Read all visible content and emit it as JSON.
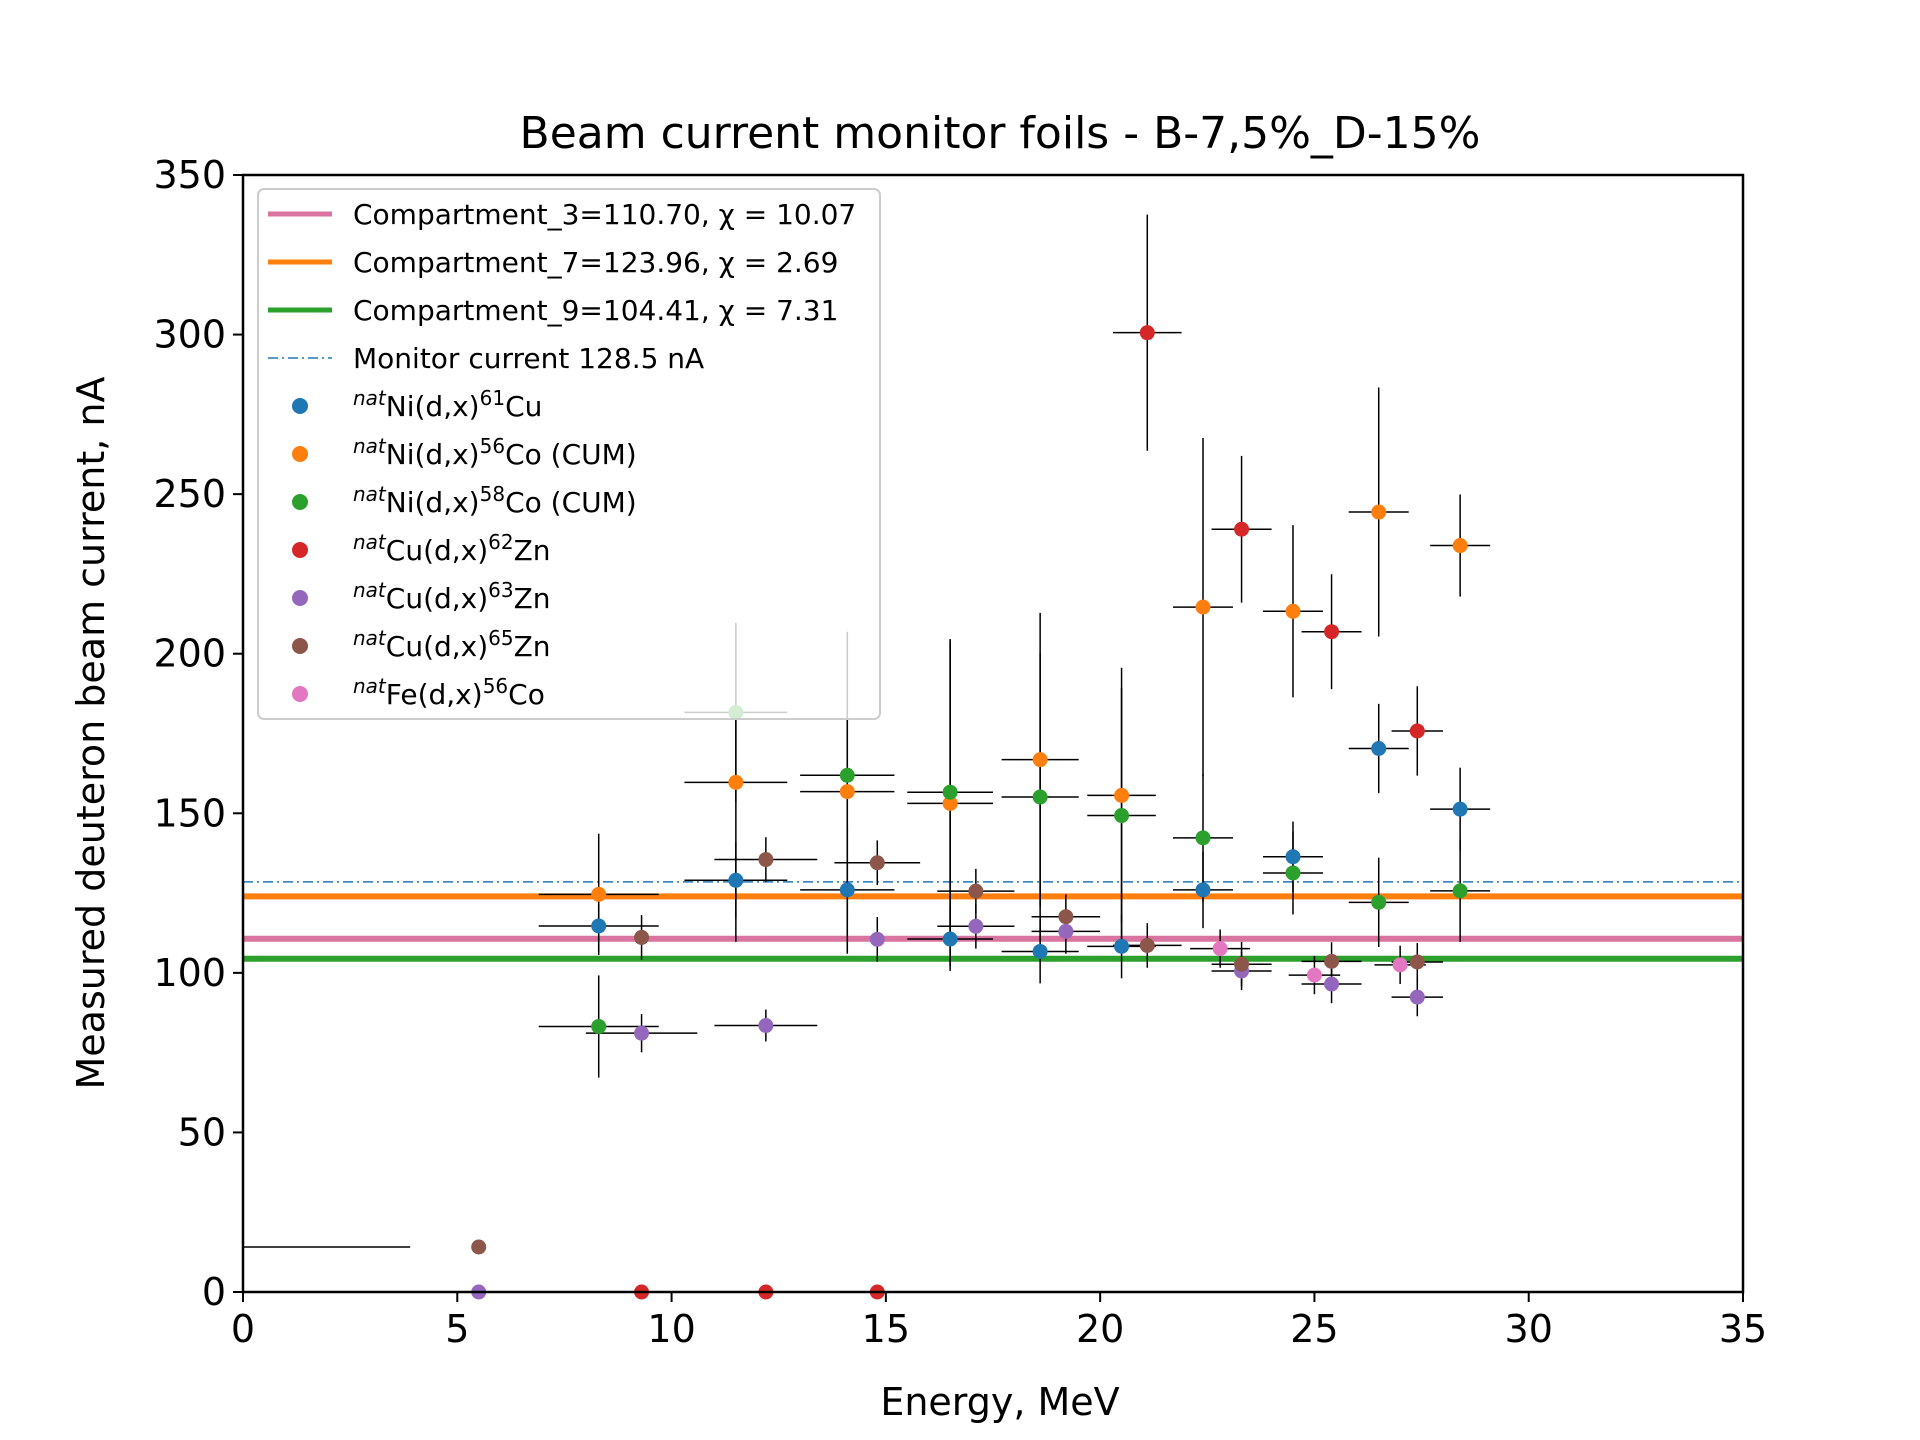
{
  "chart_data": {
    "type": "scatter",
    "title": "Beam current monitor foils - B-7,5%_D-15%",
    "xlabel": "Energy, MeV",
    "ylabel": "Measured deuteron beam current, nA",
    "xlim": [
      0,
      35
    ],
    "ylim": [
      0,
      350
    ],
    "xticks": [
      0,
      5,
      10,
      15,
      20,
      25,
      30,
      35
    ],
    "yticks": [
      0,
      50,
      100,
      150,
      200,
      250,
      300,
      350
    ],
    "grid": false,
    "legend_position": "top-left",
    "lines": [
      {
        "label": "Compartment_3=110.70, χ = 10.07",
        "value": 110.7,
        "color": "#d9739f",
        "style": "solid"
      },
      {
        "label": "Compartment_7=123.96, χ = 2.69",
        "value": 123.96,
        "color": "#ff7f0e",
        "style": "solid"
      },
      {
        "label": "Compartment_9=104.41, χ = 7.31",
        "value": 104.41,
        "color": "#2ca02c",
        "style": "solid"
      },
      {
        "label": "Monitor current 128.5 nA",
        "value": 128.5,
        "color": "#1f77b4",
        "style": "dashdot"
      }
    ],
    "series": [
      {
        "pre": "nat",
        "a": "Ni(d,x)",
        "sup": "61",
        "b": "Cu",
        "color": "#1f77b4",
        "points": [
          {
            "x": 8.3,
            "y": 114.7,
            "xerr": 1.4,
            "yerr": 8
          },
          {
            "x": 11.5,
            "y": 129,
            "xerr": 1.2,
            "yerr": 12
          },
          {
            "x": 14.1,
            "y": 126,
            "xerr": 1.1,
            "yerr": 20
          },
          {
            "x": 16.5,
            "y": 110.6,
            "xerr": 1.0,
            "yerr": 10
          },
          {
            "x": 18.6,
            "y": 106.7,
            "xerr": 0.9,
            "yerr": 10
          },
          {
            "x": 20.5,
            "y": 108.3,
            "xerr": 0.8,
            "yerr": 10
          },
          {
            "x": 22.4,
            "y": 126,
            "xerr": 0.7,
            "yerr": 12
          },
          {
            "x": 24.5,
            "y": 136.4,
            "xerr": 0.7,
            "yerr": 11
          },
          {
            "x": 26.5,
            "y": 170.3,
            "xerr": 0.7,
            "yerr": 14
          },
          {
            "x": 28.4,
            "y": 151.3,
            "xerr": 0.7,
            "yerr": 13
          }
        ]
      },
      {
        "pre": "nat",
        "a": "Ni(d,x)",
        "sup": "56",
        "b": "Co (CUM)",
        "color": "#ff7f0e",
        "points": [
          {
            "x": 8.3,
            "y": 124.6,
            "xerr": 1.4,
            "yerr": 19
          },
          {
            "x": 11.5,
            "y": 159.7,
            "xerr": 1.2,
            "yerr": 50
          },
          {
            "x": 14.1,
            "y": 156.8,
            "xerr": 1.1,
            "yerr": 50
          },
          {
            "x": 16.5,
            "y": 153.1,
            "xerr": 1.0,
            "yerr": 51
          },
          {
            "x": 18.6,
            "y": 166.8,
            "xerr": 0.9,
            "yerr": 46
          },
          {
            "x": 20.5,
            "y": 155.6,
            "xerr": 0.8,
            "yerr": 40
          },
          {
            "x": 22.4,
            "y": 214.6,
            "xerr": 0.7,
            "yerr": 53
          },
          {
            "x": 24.5,
            "y": 213.3,
            "xerr": 0.7,
            "yerr": 27
          },
          {
            "x": 26.5,
            "y": 244.4,
            "xerr": 0.7,
            "yerr": 39
          },
          {
            "x": 28.4,
            "y": 233.9,
            "xerr": 0.7,
            "yerr": 16
          }
        ]
      },
      {
        "pre": "nat",
        "a": "Ni(d,x)",
        "sup": "58",
        "b": "Co (CUM)",
        "color": "#2ca02c",
        "points": [
          {
            "x": 8.3,
            "y": 83.2,
            "xerr": 1.4,
            "yerr": 16
          },
          {
            "x": 11.5,
            "y": 181.6,
            "xerr": 1.2,
            "yerr": 28
          },
          {
            "x": 14.1,
            "y": 161.9,
            "xerr": 1.1,
            "yerr": 45
          },
          {
            "x": 16.5,
            "y": 156.6,
            "xerr": 1.0,
            "yerr": 48
          },
          {
            "x": 18.6,
            "y": 155.1,
            "xerr": 0.9,
            "yerr": 45
          },
          {
            "x": 20.5,
            "y": 149.3,
            "xerr": 0.8,
            "yerr": 40
          },
          {
            "x": 22.4,
            "y": 142.3,
            "xerr": 0.7,
            "yerr": 20
          },
          {
            "x": 24.5,
            "y": 131.3,
            "xerr": 0.7,
            "yerr": 13
          },
          {
            "x": 26.5,
            "y": 122.1,
            "xerr": 0.7,
            "yerr": 14
          },
          {
            "x": 28.4,
            "y": 125.7,
            "xerr": 0.7,
            "yerr": 16
          }
        ]
      },
      {
        "pre": "nat",
        "a": "Cu(d,x)",
        "sup": "62",
        "b": "Zn",
        "color": "#d62728",
        "points": [
          {
            "x": 9.3,
            "y": 0,
            "xerr": 0,
            "yerr": 0
          },
          {
            "x": 12.2,
            "y": 0,
            "xerr": 0,
            "yerr": 0
          },
          {
            "x": 14.8,
            "y": 0,
            "xerr": 0,
            "yerr": 0
          },
          {
            "x": 21.1,
            "y": 300.6,
            "xerr": 0.8,
            "yerr": 37
          },
          {
            "x": 23.3,
            "y": 239,
            "xerr": 0.7,
            "yerr": 23
          },
          {
            "x": 25.4,
            "y": 206.9,
            "xerr": 0.7,
            "yerr": 18
          },
          {
            "x": 27.4,
            "y": 175.8,
            "xerr": 0.6,
            "yerr": 14
          }
        ]
      },
      {
        "pre": "nat",
        "a": "Cu(d,x)",
        "sup": "63",
        "b": "Zn",
        "color": "#9467bd",
        "points": [
          {
            "x": 5.5,
            "y": 0,
            "xerr": 0,
            "yerr": 0
          },
          {
            "x": 9.3,
            "y": 81.1,
            "xerr": 1.3,
            "yerr": 6
          },
          {
            "x": 12.2,
            "y": 83.5,
            "xerr": 1.2,
            "yerr": 5
          },
          {
            "x": 14.8,
            "y": 110.5,
            "xerr": 0,
            "yerr": 7
          },
          {
            "x": 17.1,
            "y": 114.6,
            "xerr": 0.9,
            "yerr": 7
          },
          {
            "x": 19.2,
            "y": 113,
            "xerr": 0.8,
            "yerr": 7
          },
          {
            "x": 23.3,
            "y": 100.6,
            "xerr": 0.7,
            "yerr": 6
          },
          {
            "x": 25.4,
            "y": 96.5,
            "xerr": 0.7,
            "yerr": 6
          },
          {
            "x": 27.4,
            "y": 92.4,
            "xerr": 0.6,
            "yerr": 6
          }
        ]
      },
      {
        "pre": "nat",
        "a": "Cu(d,x)",
        "sup": "65",
        "b": "Zn",
        "color": "#8c564b",
        "points": [
          {
            "x": 5.5,
            "y": 14.1,
            "xerr": 0,
            "yerr": 0
          },
          {
            "x": 9.3,
            "y": 111.1,
            "xerr": 0,
            "yerr": 7
          },
          {
            "x": 12.2,
            "y": 135.5,
            "xerr": 1.2,
            "yerr": 7
          },
          {
            "x": 14.8,
            "y": 134.5,
            "xerr": 1.0,
            "yerr": 7
          },
          {
            "x": 17.1,
            "y": 125.6,
            "xerr": 0.9,
            "yerr": 7
          },
          {
            "x": 19.2,
            "y": 117.6,
            "xerr": 0.8,
            "yerr": 7
          },
          {
            "x": 21.1,
            "y": 108.6,
            "xerr": 0.8,
            "yerr": 7
          },
          {
            "x": 23.3,
            "y": 102.7,
            "xerr": 0.7,
            "yerr": 7
          },
          {
            "x": 25.4,
            "y": 103.6,
            "xerr": 0.7,
            "yerr": 6
          },
          {
            "x": 27.4,
            "y": 103.4,
            "xerr": 0.6,
            "yerr": 6
          }
        ]
      },
      {
        "pre": "nat",
        "a": "Fe(d,x)",
        "sup": "56",
        "b": "Co",
        "color": "#e377c2",
        "points": [
          {
            "x": 22.8,
            "y": 107.6,
            "xerr": 0.7,
            "yerr": 6
          },
          {
            "x": 25.0,
            "y": 99.3,
            "xerr": 0.6,
            "yerr": 6
          },
          {
            "x": 27.0,
            "y": 102.5,
            "xerr": 0.6,
            "yerr": 6
          }
        ]
      }
    ],
    "extra_errorbars": [
      {
        "x": 0,
        "y": 14.1,
        "x_from": 0,
        "x_to": 3.9
      }
    ]
  }
}
